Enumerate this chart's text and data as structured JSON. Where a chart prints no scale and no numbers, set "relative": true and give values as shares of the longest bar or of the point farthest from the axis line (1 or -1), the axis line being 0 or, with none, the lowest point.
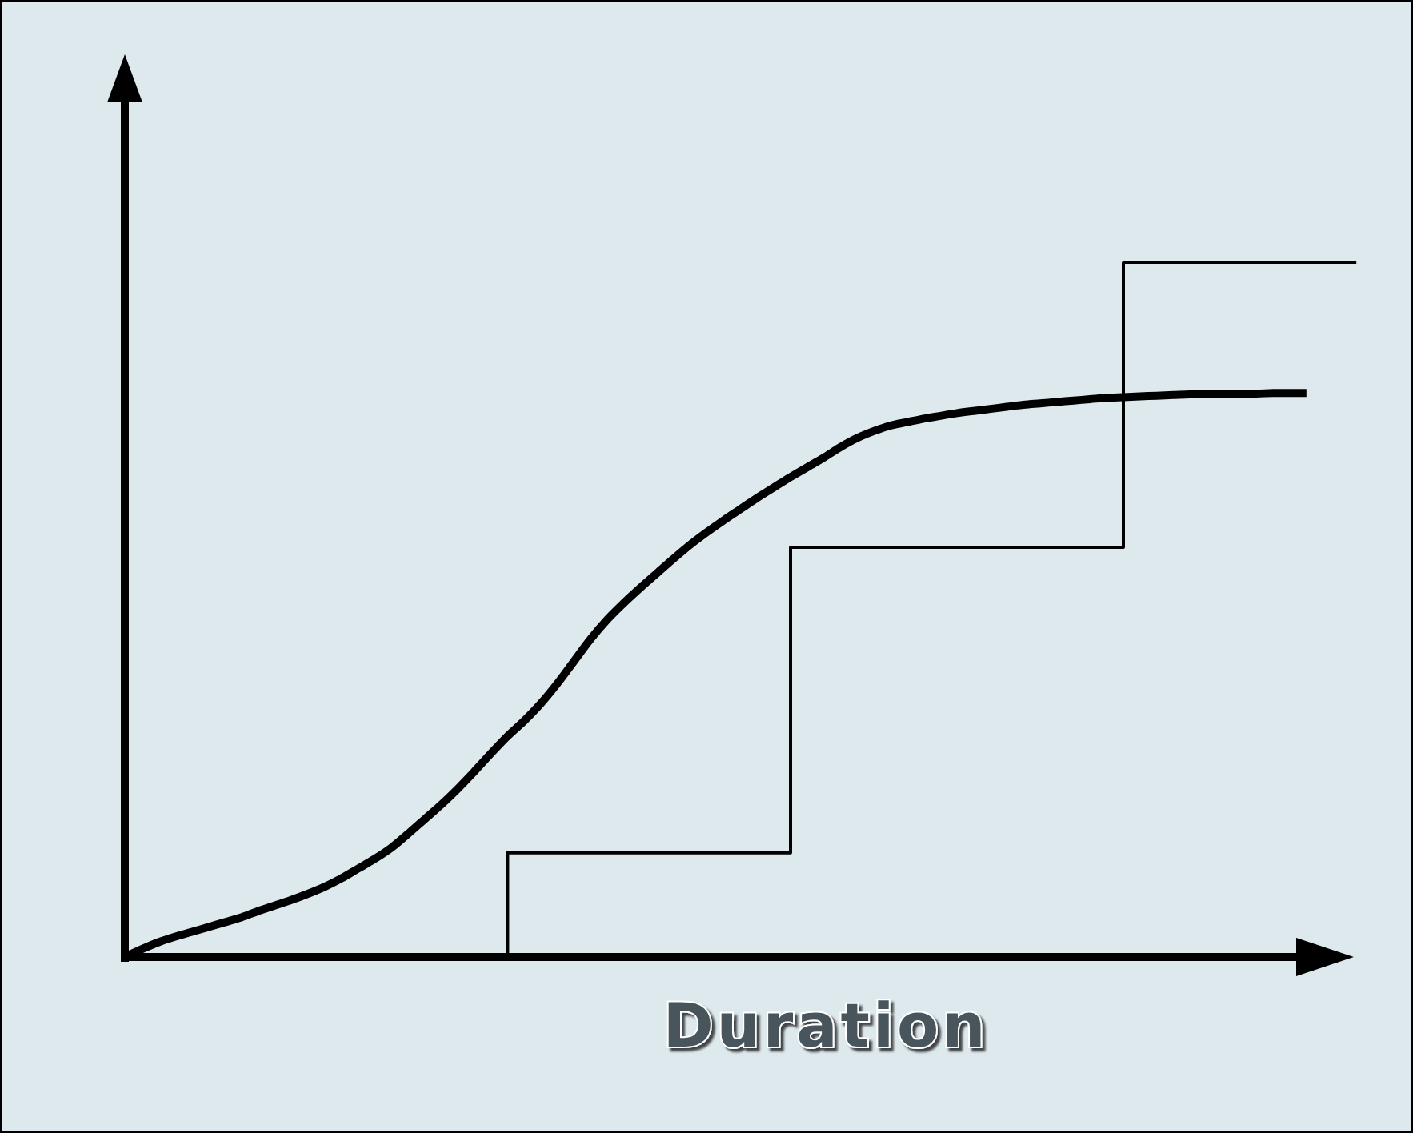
{
  "chart_data": {
    "type": "line",
    "relative": true,
    "xlabel": "Duration",
    "categories": [
      null,
      null,
      null,
      null,
      null,
      null,
      null,
      null,
      null,
      null,
      null,
      null,
      null,
      null,
      null,
      null,
      null,
      null,
      null,
      null,
      null,
      null,
      null,
      null,
      null,
      null,
      null,
      null,
      null,
      null,
      null,
      null,
      null,
      null,
      null,
      null,
      null,
      null,
      null,
      null,
      null,
      null,
      null,
      null,
      null,
      null,
      null,
      null,
      null,
      null,
      null,
      null,
      null,
      null,
      null,
      null,
      null,
      null,
      null,
      null,
      null,
      null,
      null,
      null,
      null,
      null,
      null,
      null,
      null,
      null,
      null,
      null,
      null,
      null,
      null
    ],
    "series": [
      {
        "type": "line",
        "color": "#000000",
        "values": [
          0,
          0.011,
          0.021,
          0.029,
          0.036,
          0.043,
          0.05,
          0.057,
          0.066,
          0.074,
          0.082,
          0.091,
          0.101,
          0.113,
          0.127,
          0.141,
          0.157,
          0.177,
          0.198,
          0.219,
          0.242,
          0.267,
          0.293,
          0.318,
          0.34,
          0.365,
          0.394,
          0.426,
          0.458,
          0.486,
          0.51,
          0.532,
          0.553,
          0.574,
          0.594,
          0.612,
          0.629,
          0.645,
          0.661,
          0.676,
          0.691,
          0.705,
          0.719,
          0.734,
          0.747,
          0.757,
          0.765,
          0.77,
          0.775,
          0.779,
          0.783,
          0.786,
          0.789,
          0.792,
          0.795,
          0.797,
          0.799,
          0.801,
          0.803,
          0.805,
          0.806,
          0.807,
          0.808,
          0.809,
          0.81,
          0.81,
          0.811,
          0.811,
          0.811,
          0.812,
          0.812,
          0.812,
          null,
          null,
          null
        ]
      },
      {
        "type": "step",
        "color": "#000000",
        "values": [
          null,
          null,
          null,
          null,
          null,
          null,
          null,
          null,
          null,
          null,
          null,
          null,
          null,
          null,
          null,
          null,
          null,
          null,
          null,
          null,
          null,
          null,
          0,
          0.15,
          0.15,
          0.15,
          0.15,
          0.15,
          0.15,
          0.15,
          0.15,
          0.15,
          0.15,
          0.15,
          0.15,
          0.15,
          0.15,
          0.15,
          0.15,
          0.15,
          0.59,
          0.59,
          0.59,
          0.59,
          0.59,
          0.59,
          0.59,
          0.59,
          0.59,
          0.59,
          0.59,
          0.59,
          0.59,
          0.59,
          0.59,
          0.59,
          0.59,
          0.59,
          0.59,
          0.59,
          1,
          1,
          1,
          1,
          1,
          1,
          1,
          1,
          1,
          1,
          1,
          1,
          1,
          1,
          1
        ]
      }
    ]
  }
}
